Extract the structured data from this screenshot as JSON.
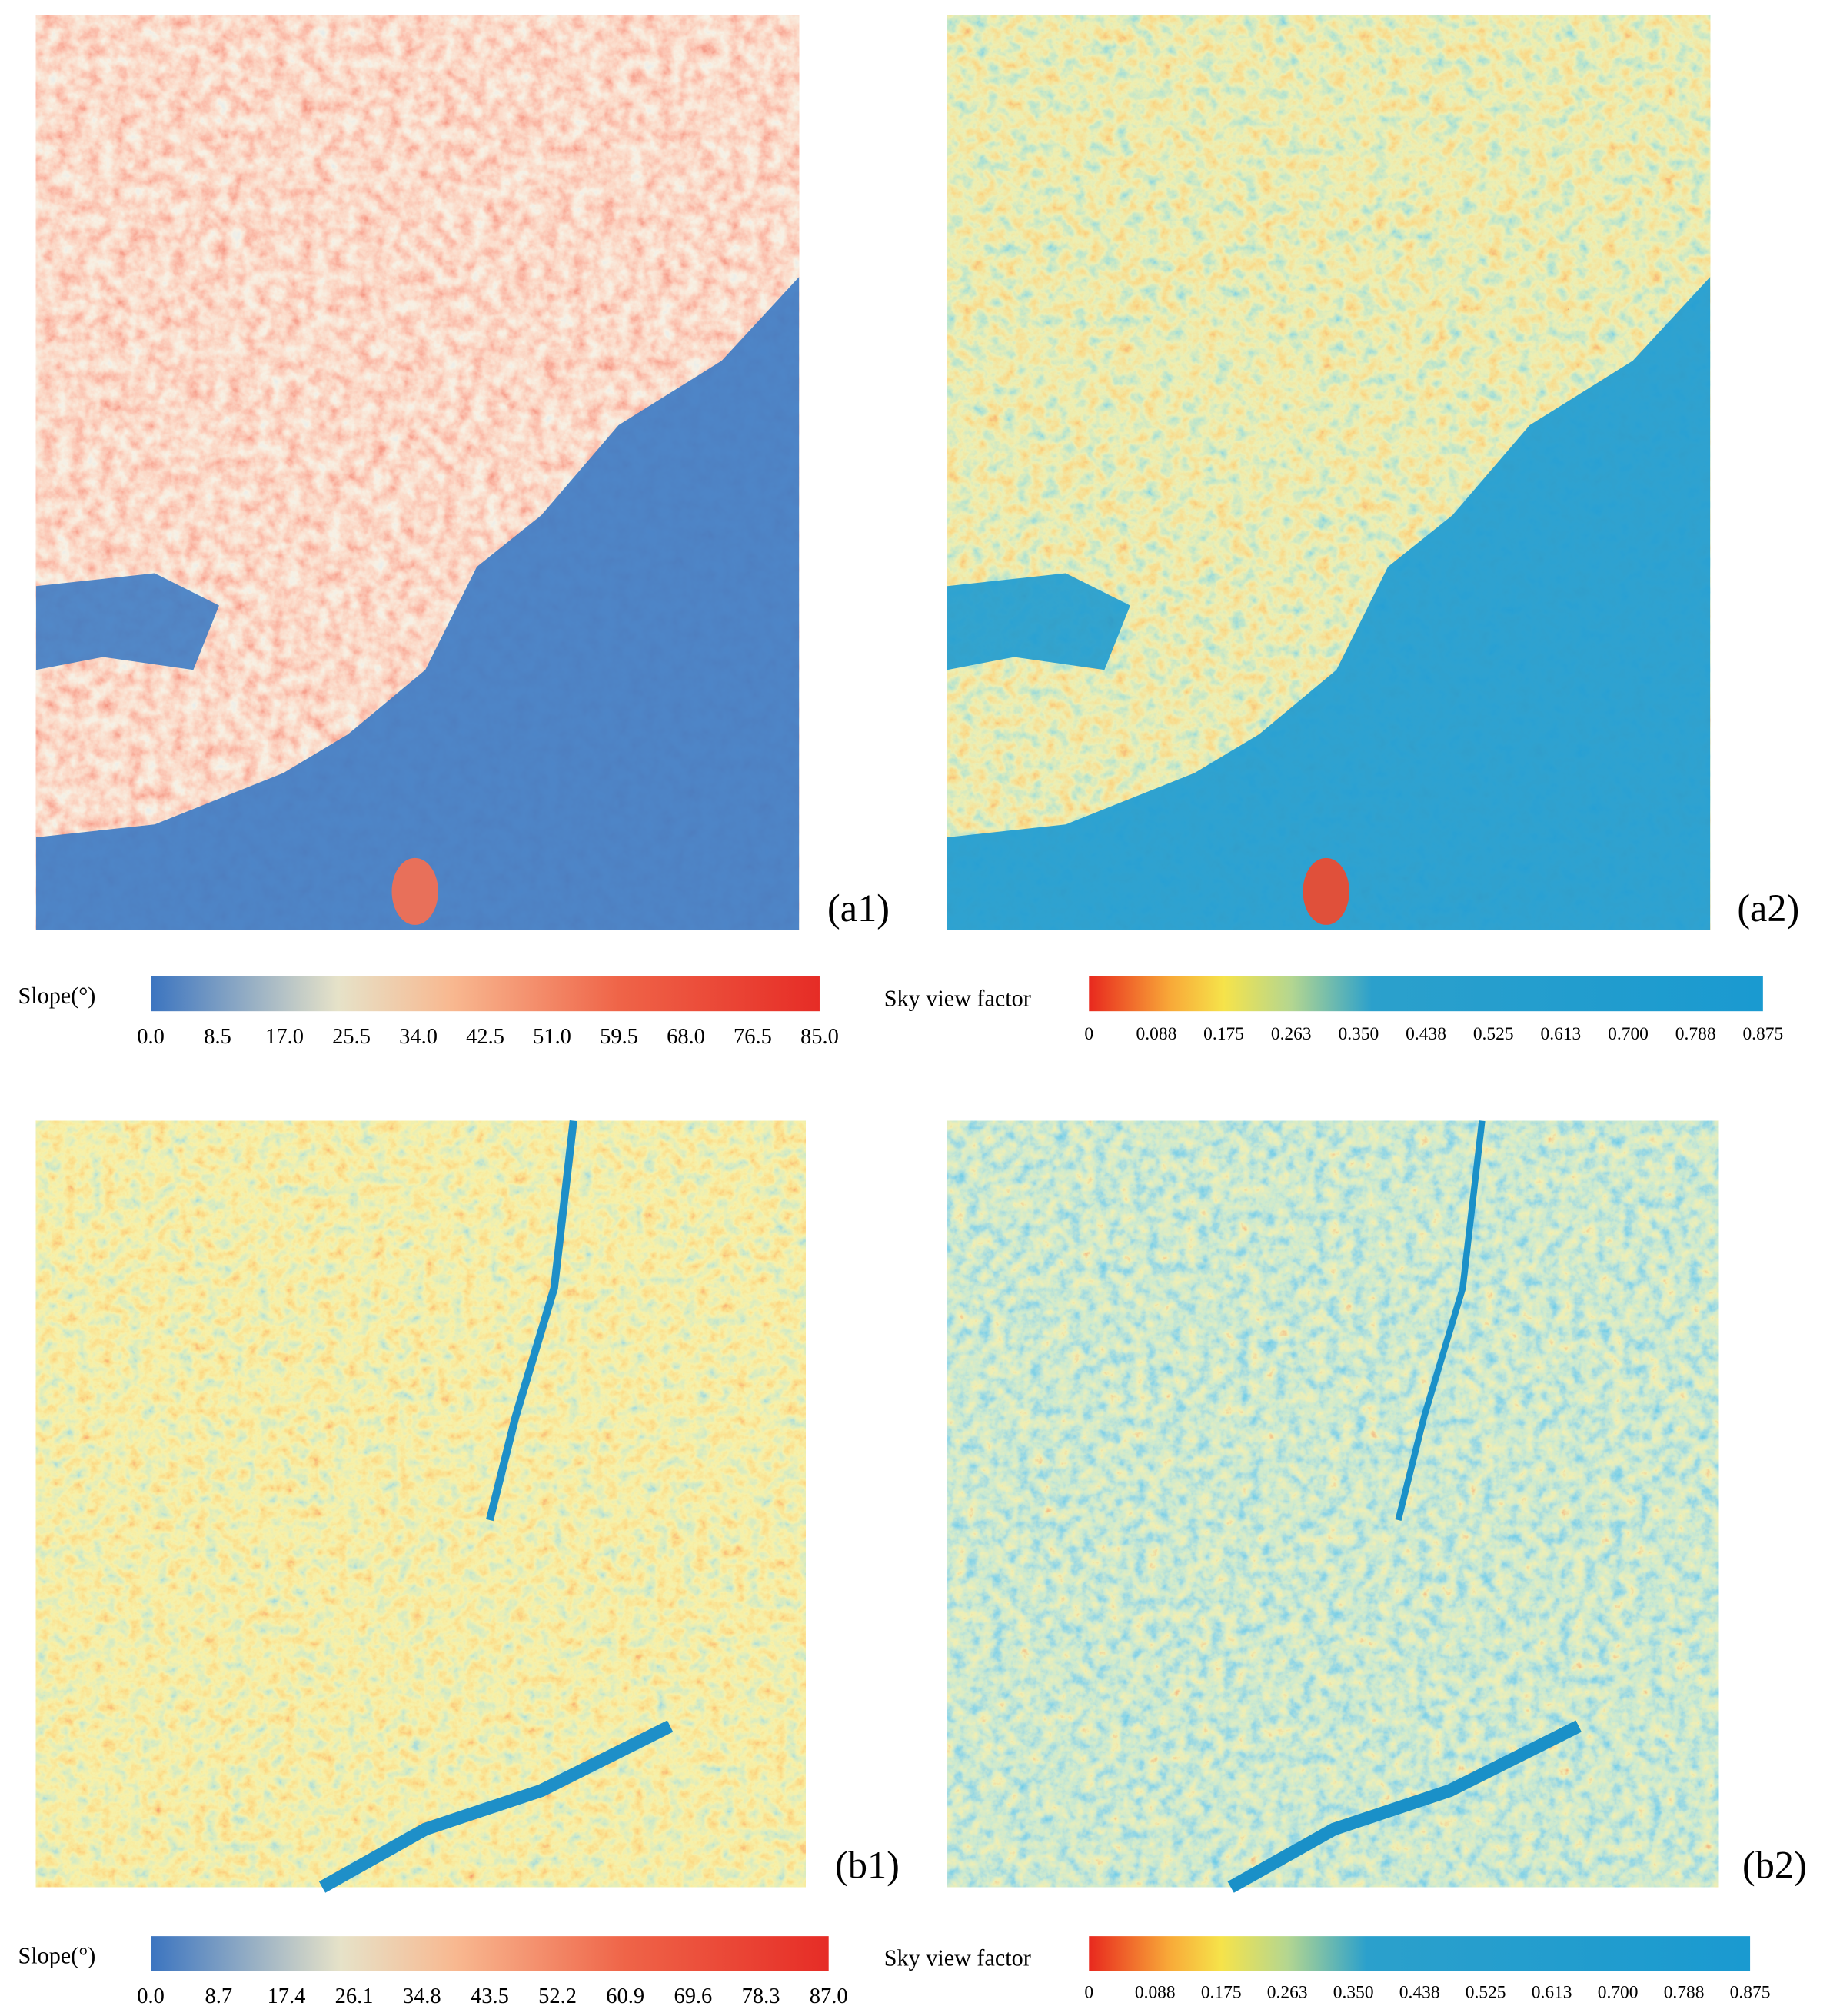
{
  "panels": [
    {
      "label": "(a1)",
      "colorbar": {
        "title": "Slope(°)",
        "ticks": [
          "0.0",
          "8.5",
          "17.0",
          "25.5",
          "34.0",
          "42.5",
          "51.0",
          "59.5",
          "68.0",
          "76.5",
          "85.0"
        ]
      }
    },
    {
      "label": "(a2)",
      "colorbar": {
        "title": "Sky view factor",
        "ticks": [
          "0",
          "0.088",
          "0.175",
          "0.263",
          "0.350",
          "0.438",
          "0.525",
          "0.613",
          "0.700",
          "0.788",
          "0.875"
        ]
      }
    },
    {
      "label": "(b1)",
      "colorbar": {
        "title": "Slope(°)",
        "ticks": [
          "0.0",
          "8.7",
          "17.4",
          "26.1",
          "34.8",
          "43.5",
          "52.2",
          "60.9",
          "69.6",
          "78.3",
          "87.0"
        ]
      }
    },
    {
      "label": "(b2)",
      "colorbar": {
        "title": "Sky view factor",
        "ticks": [
          "0",
          "0.088",
          "0.175",
          "0.263",
          "0.350",
          "0.438",
          "0.525",
          "0.613",
          "0.700",
          "0.788",
          "0.875"
        ]
      }
    }
  ]
}
